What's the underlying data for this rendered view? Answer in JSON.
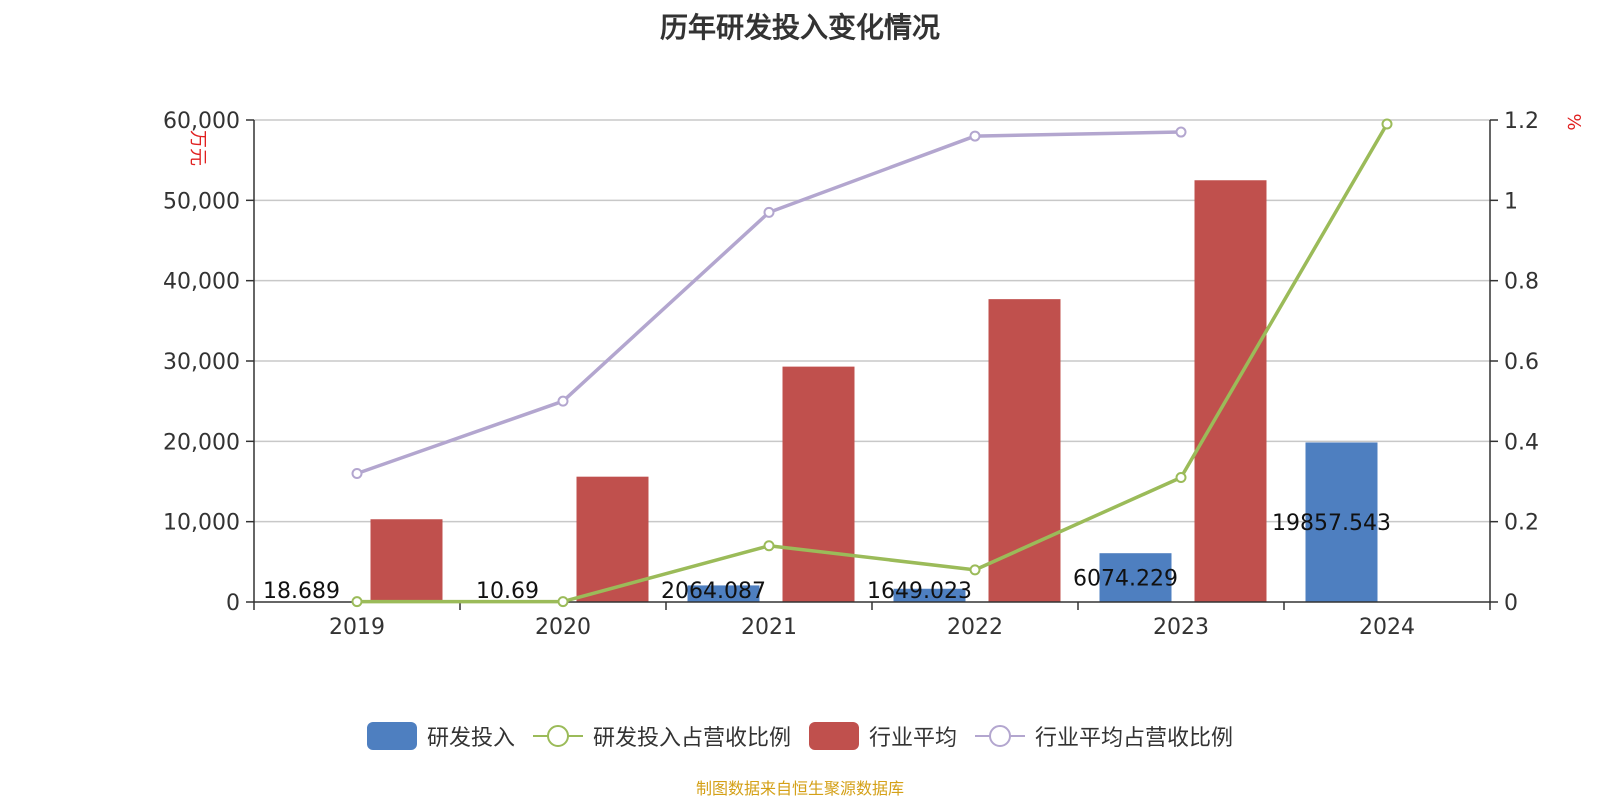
{
  "title": "历年研发投入变化情况",
  "source": "制图数据来自恒生聚源数据库",
  "chart_data": {
    "type": "bar",
    "categories": [
      "2019",
      "2020",
      "2021",
      "2022",
      "2023",
      "2024"
    ],
    "y_left": {
      "label": "万元",
      "min": 0,
      "max": 60000,
      "ticks": [
        "0",
        "10,000",
        "20,000",
        "30,000",
        "40,000",
        "50,000",
        "60,000"
      ]
    },
    "y_right": {
      "label": "%",
      "min": 0,
      "max": 1.2,
      "ticks": [
        "0",
        "0.2",
        "0.4",
        "0.6",
        "0.8",
        "1",
        "1.2"
      ]
    },
    "series": [
      {
        "name": "研发投入",
        "kind": "bar",
        "axis": "left",
        "color": "#4e7fc0",
        "values": [
          18.689,
          10.69,
          2064.087,
          1649.023,
          6074.229,
          19857.543
        ],
        "labels": [
          "18.689",
          "10.69",
          "2064.087",
          "1649.023",
          "6074.229",
          "19857.543"
        ]
      },
      {
        "name": "研发投入占营收比例",
        "kind": "line",
        "axis": "right",
        "color": "#9bbb59",
        "values": [
          0.001,
          0.001,
          0.14,
          0.08,
          0.31,
          1.19
        ]
      },
      {
        "name": "行业平均",
        "kind": "bar",
        "axis": "left",
        "color": "#c0504d",
        "values": [
          10300,
          15600,
          29300,
          37700,
          52500,
          null
        ]
      },
      {
        "name": "行业平均占营收比例",
        "kind": "line",
        "axis": "right",
        "color": "#b3a6cf",
        "values": [
          0.32,
          0.5,
          0.97,
          1.16,
          1.17,
          null
        ]
      }
    ]
  }
}
